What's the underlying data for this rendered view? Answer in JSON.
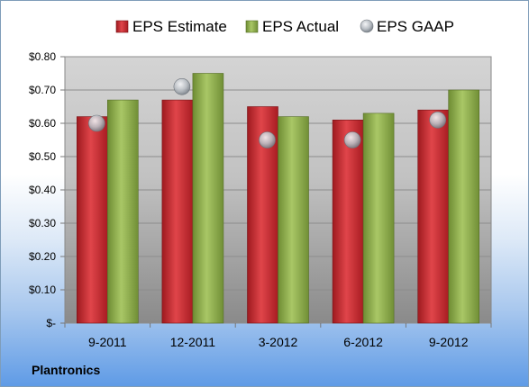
{
  "company": "Plantronics",
  "chart_data": {
    "type": "bar",
    "categories": [
      "9-2011",
      "12-2011",
      "3-2012",
      "6-2012",
      "9-2012"
    ],
    "series": [
      {
        "name": "EPS Estimate",
        "type": "bar",
        "color": "#c0282d",
        "values": [
          0.62,
          0.67,
          0.65,
          0.61,
          0.64
        ]
      },
      {
        "name": "EPS Actual",
        "type": "bar",
        "color": "#8fb04a",
        "values": [
          0.67,
          0.75,
          0.62,
          0.63,
          0.7
        ]
      },
      {
        "name": "EPS GAAP",
        "type": "marker",
        "color": "#a6acb3",
        "values": [
          0.6,
          0.71,
          0.55,
          0.55,
          0.61
        ]
      }
    ],
    "ylim": [
      0,
      0.8
    ],
    "yticks": [
      0,
      0.1,
      0.2,
      0.3,
      0.4,
      0.5,
      0.6,
      0.7,
      0.8
    ],
    "ytick_labels": [
      "$-",
      "$0.10",
      "$0.20",
      "$0.30",
      "$0.40",
      "$0.50",
      "$0.60",
      "$0.70",
      "$0.80"
    ],
    "grid": true,
    "legend": "top"
  }
}
